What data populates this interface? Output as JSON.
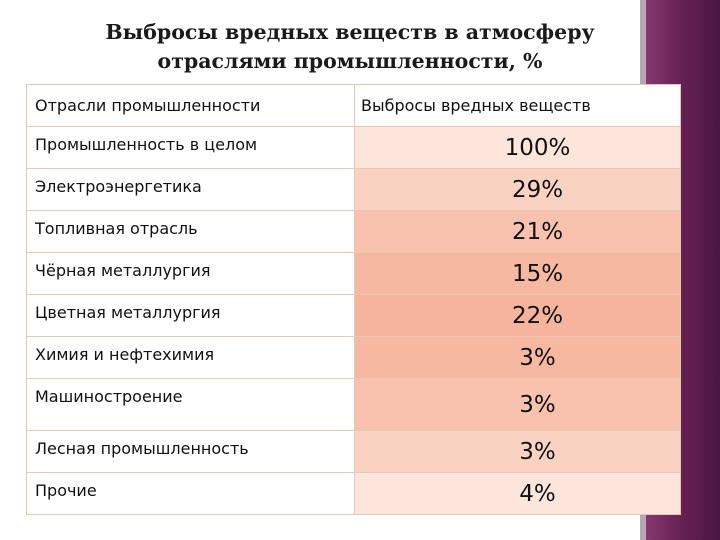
{
  "title": {
    "line1": "Выбросы вредных веществ в атмосферу",
    "line2": "отраслями промышленности, %"
  },
  "table": {
    "headers": [
      "Отрасли промышленности",
      "Выбросы вредных веществ"
    ],
    "rows": [
      {
        "industry": "Промышленность в целом",
        "value": "100%"
      },
      {
        "industry": "Электроэнергетика",
        "value": "29%"
      },
      {
        "industry": "Топливная отрасль",
        "value": "21%"
      },
      {
        "industry": "Чёрная металлургия",
        "value": "15%"
      },
      {
        "industry": "Цветная металлургия",
        "value": "22%"
      },
      {
        "industry": "Химия и нефтехимия",
        "value": "3%"
      },
      {
        "industry": "Машиностроение",
        "value": "3%"
      },
      {
        "industry": "Лесная промышленность",
        "value": "3%"
      },
      {
        "industry": "Прочие",
        "value": "4%"
      }
    ]
  },
  "colors": {
    "accent_band": "#6a2357",
    "value_gradient_top": "#fdf0e8",
    "value_gradient_bottom": "#f6b49c"
  }
}
